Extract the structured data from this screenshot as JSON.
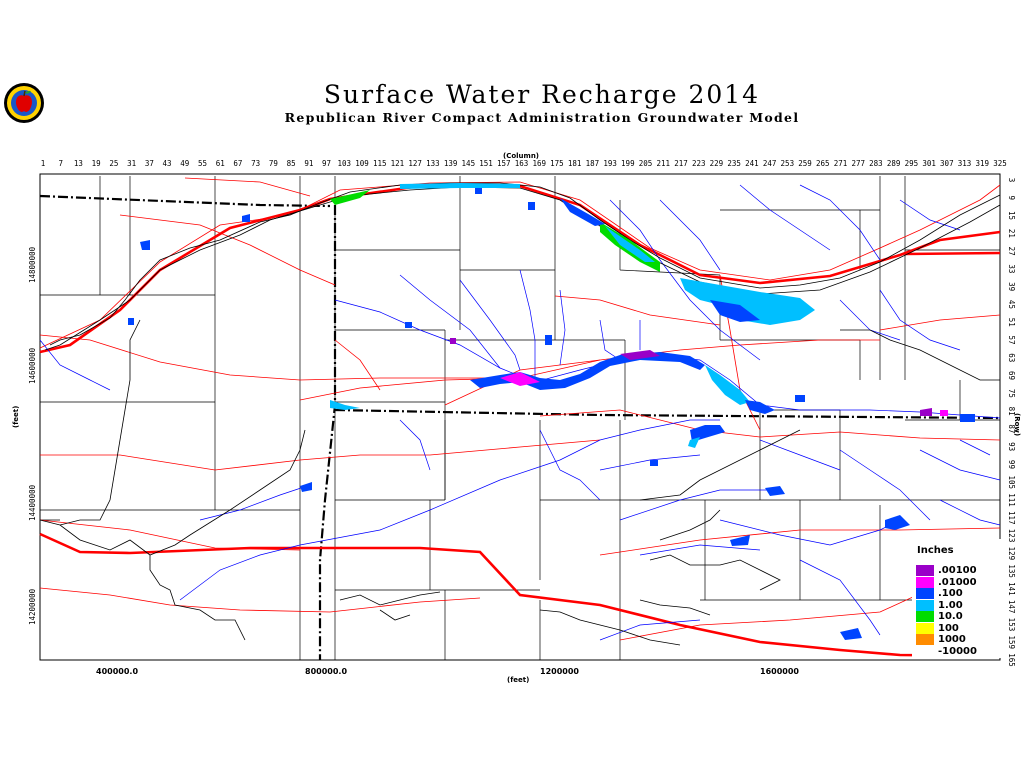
{
  "title": "Surface Water Recharge 2014",
  "subtitle": "Republican River Compact Administration Groundwater Model",
  "logo_icon": "apple-seal-logo",
  "top_axis": {
    "caption": "(Column)",
    "labels": [
      "1",
      "7",
      "13",
      "19",
      "25",
      "31",
      "37",
      "43",
      "49",
      "55",
      "61",
      "67",
      "73",
      "79",
      "85",
      "91",
      "97",
      "103",
      "109",
      "115",
      "121",
      "127",
      "133",
      "139",
      "145",
      "151",
      "157",
      "163",
      "169",
      "175",
      "181",
      "187",
      "193",
      "199",
      "205",
      "211",
      "217",
      "223",
      "229",
      "235",
      "241",
      "247",
      "253",
      "259",
      "265",
      "271",
      "277",
      "283",
      "289",
      "295",
      "301",
      "307",
      "313",
      "319",
      "325"
    ]
  },
  "right_axis": {
    "caption": "(Row)",
    "labels": [
      "3",
      "9",
      "15",
      "21",
      "27",
      "33",
      "39",
      "45",
      "51",
      "57",
      "63",
      "69",
      "75",
      "81",
      "87",
      "93",
      "99",
      "105",
      "111",
      "117",
      "123",
      "129",
      "135",
      "141",
      "147",
      "153",
      "159",
      "165"
    ]
  },
  "left_axis": {
    "caption": "(feet)",
    "labels": [
      "14800000",
      "14600000",
      "14400000",
      "14200000"
    ]
  },
  "bottom_axis": {
    "caption": "(feet)",
    "labels": [
      "400000.0",
      "800000.0",
      "1200000",
      "1600000"
    ]
  },
  "legend": {
    "title": "Inches",
    "items": [
      {
        "label": ".00100",
        "color": "#9a00c8"
      },
      {
        "label": ".01000",
        "color": "#ff00ff"
      },
      {
        "label": ".100",
        "color": "#0044ff"
      },
      {
        "label": "1.00",
        "color": "#00bfff"
      },
      {
        "label": "10.0",
        "color": "#00dc00"
      },
      {
        "label": "100",
        "color": "#ffff00"
      },
      {
        "label": "1000",
        "color": "#ff8c00"
      },
      {
        "label": "-10000",
        "color": "#ffffff"
      }
    ]
  },
  "colors": {
    "county_lines": "#000000",
    "highways": "#ff0000",
    "major_roads": "#ff0000",
    "streams": "#0000ff",
    "state_boundary": "#000000"
  }
}
